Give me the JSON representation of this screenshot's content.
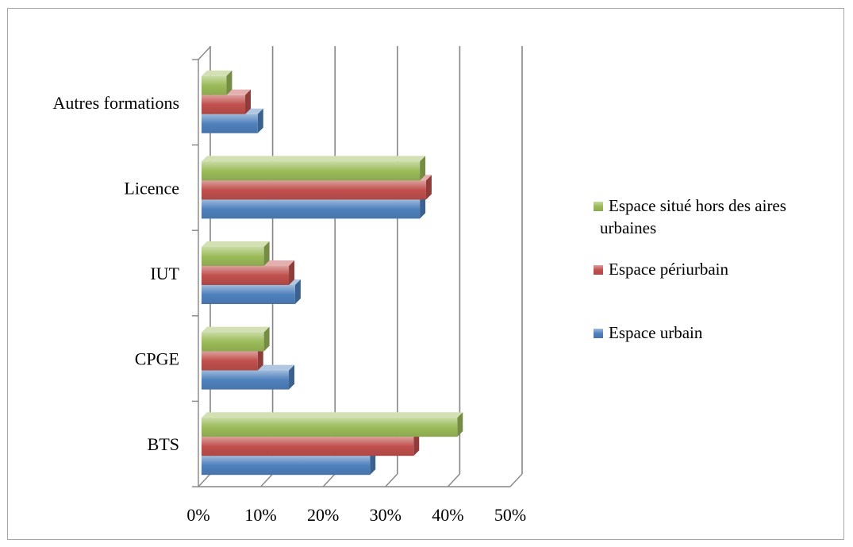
{
  "chart_data": {
    "type": "bar",
    "orientation": "horizontal",
    "three_d": true,
    "categories": [
      "BTS",
      "CPGE",
      "IUT",
      "Licence",
      "Autres formations"
    ],
    "series": [
      {
        "name": "Espace urbain",
        "color": "#4f81bd",
        "values": [
          27,
          14,
          15,
          35,
          9
        ]
      },
      {
        "name": "Espace périurbain",
        "color": "#c0504d",
        "values": [
          34,
          9,
          14,
          36,
          7
        ]
      },
      {
        "name": "Espace situé hors des aires urbaines",
        "color": "#9bbb59",
        "values": [
          41,
          10,
          10,
          35,
          4
        ]
      }
    ],
    "x_ticks": [
      "0%",
      "10%",
      "20%",
      "30%",
      "40%",
      "50%"
    ],
    "xlim": [
      0,
      50
    ],
    "grid": true,
    "legend_position": "right",
    "legend_order": [
      "Espace situé hors des aires urbaines",
      "Espace périurbain",
      "Espace urbain"
    ],
    "legend_lines": {
      "Espace situé hors des aires urbaines": [
        "Espace situé hors des aires",
        "urbaines"
      ]
    }
  }
}
